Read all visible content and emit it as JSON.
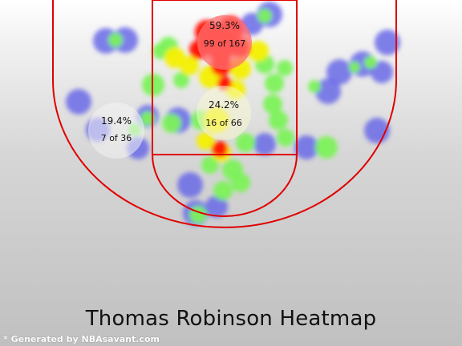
{
  "chart_data": {
    "type": "heatmap",
    "title": "Thomas Robinson Heatmap",
    "zones": [
      {
        "name": "restricted-area",
        "pct": "59.3%",
        "made_of": "99 of 167",
        "made": 99,
        "attempts": 167
      },
      {
        "name": "paint-non-ra",
        "pct": "24.2%",
        "made_of": "16 of 66",
        "made": 16,
        "attempts": 66
      },
      {
        "name": "left-mid-range",
        "pct": "19.4%",
        "made_of": "7 of 36",
        "made": 7,
        "attempts": 36
      }
    ],
    "colors": {
      "court_lines": "#e00000",
      "cold": "#6a6ae8",
      "warm": "#7cf25a",
      "mid": "#f4f000",
      "hot": "#ff1000"
    }
  },
  "footer": {
    "credit": "* Generated by NBAsavant.com"
  }
}
